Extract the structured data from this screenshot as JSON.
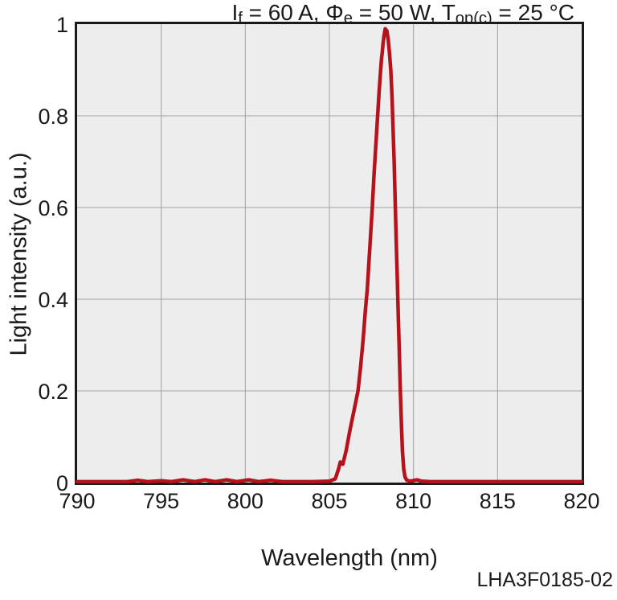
{
  "page": {
    "background": "#ffffff",
    "figure_code": "LHA3F0185-02"
  },
  "chart_data": {
    "type": "line",
    "title_plain": "If = 60 A, Φe = 50 W, Top(c) = 25 °C",
    "title_segments": [
      {
        "text": "I"
      },
      {
        "text": "f",
        "sub": true
      },
      {
        "text": " = 60 A, "
      },
      {
        "text": "Φ"
      },
      {
        "text": "e",
        "sub": true
      },
      {
        "text": " = 50 W, T"
      },
      {
        "text": "op(c)",
        "sub": true
      },
      {
        "text": " = 25 °C"
      }
    ],
    "xlabel": "Wavelength (nm)",
    "ylabel": "Light intensity (a.u.)",
    "xlim": [
      790,
      820
    ],
    "ylim": [
      0,
      1
    ],
    "x_ticks": [
      {
        "value": 790,
        "label": "790"
      },
      {
        "value": 795,
        "label": "795"
      },
      {
        "value": 800,
        "label": "800"
      },
      {
        "value": 805,
        "label": "805"
      },
      {
        "value": 810,
        "label": "810"
      },
      {
        "value": 815,
        "label": "815"
      },
      {
        "value": 820,
        "label": "820"
      }
    ],
    "y_ticks": [
      {
        "value": 1,
        "label": "1"
      },
      {
        "value": 0.8,
        "label": "0.8"
      },
      {
        "value": 0.6,
        "label": "0.6"
      },
      {
        "value": 0.4,
        "label": "0.4"
      },
      {
        "value": 0.2,
        "label": "0.2"
      },
      {
        "value": 0,
        "label": "0"
      }
    ],
    "x_gridlines": [
      795,
      800,
      805,
      810,
      815
    ],
    "y_gridlines": [
      0.2,
      0.4,
      0.6,
      0.8
    ],
    "grid": true,
    "legend": "none",
    "colors": {
      "line": "#b5121b",
      "plot_bg": "#ededed",
      "grid": "#a2a2a2",
      "frame": "#1a1a1a",
      "text": "#1a1a1a"
    },
    "series": [
      {
        "name": "emission-spectrum",
        "peak_wavelength_nm": 808.3,
        "peak_intensity": 0.99,
        "points": [
          [
            790,
            0.002
          ],
          [
            791,
            0.002
          ],
          [
            792,
            0.002
          ],
          [
            793,
            0.002
          ],
          [
            793.6,
            0.005
          ],
          [
            794.2,
            0.002
          ],
          [
            795,
            0.004
          ],
          [
            795.6,
            0.002
          ],
          [
            796.3,
            0.006
          ],
          [
            797,
            0.002
          ],
          [
            797.6,
            0.006
          ],
          [
            798.2,
            0.002
          ],
          [
            798.9,
            0.006
          ],
          [
            799.5,
            0.002
          ],
          [
            800.2,
            0.006
          ],
          [
            800.8,
            0.002
          ],
          [
            801.5,
            0.005
          ],
          [
            802.2,
            0.002
          ],
          [
            803,
            0.002
          ],
          [
            804,
            0.002
          ],
          [
            805,
            0.003
          ],
          [
            805.35,
            0.008
          ],
          [
            805.55,
            0.03
          ],
          [
            805.65,
            0.045
          ],
          [
            805.8,
            0.04
          ],
          [
            806,
            0.07
          ],
          [
            806.2,
            0.11
          ],
          [
            806.45,
            0.155
          ],
          [
            806.7,
            0.2
          ],
          [
            806.85,
            0.25
          ],
          [
            807,
            0.31
          ],
          [
            807.15,
            0.38
          ],
          [
            807.25,
            0.42
          ],
          [
            807.35,
            0.48
          ],
          [
            807.45,
            0.54
          ],
          [
            807.55,
            0.6
          ],
          [
            807.65,
            0.67
          ],
          [
            807.75,
            0.73
          ],
          [
            807.85,
            0.79
          ],
          [
            807.95,
            0.85
          ],
          [
            808.05,
            0.9
          ],
          [
            808.1,
            0.925
          ],
          [
            808.15,
            0.94
          ],
          [
            808.18,
            0.955
          ],
          [
            808.25,
            0.975
          ],
          [
            808.32,
            0.99
          ],
          [
            808.42,
            0.985
          ],
          [
            808.5,
            0.965
          ],
          [
            808.58,
            0.935
          ],
          [
            808.65,
            0.9
          ],
          [
            808.72,
            0.845
          ],
          [
            808.78,
            0.78
          ],
          [
            808.85,
            0.7
          ],
          [
            808.92,
            0.6
          ],
          [
            808.98,
            0.52
          ],
          [
            809.04,
            0.44
          ],
          [
            809.1,
            0.36
          ],
          [
            809.16,
            0.28
          ],
          [
            809.22,
            0.2
          ],
          [
            809.28,
            0.13
          ],
          [
            809.34,
            0.07
          ],
          [
            809.42,
            0.03
          ],
          [
            809.5,
            0.012
          ],
          [
            809.6,
            0.005
          ],
          [
            809.8,
            0.003
          ],
          [
            810.2,
            0.006
          ],
          [
            810.5,
            0.003
          ],
          [
            811,
            0.002
          ],
          [
            812,
            0.002
          ],
          [
            814,
            0.002
          ],
          [
            816,
            0.002
          ],
          [
            818,
            0.002
          ],
          [
            820,
            0.002
          ]
        ]
      }
    ]
  }
}
